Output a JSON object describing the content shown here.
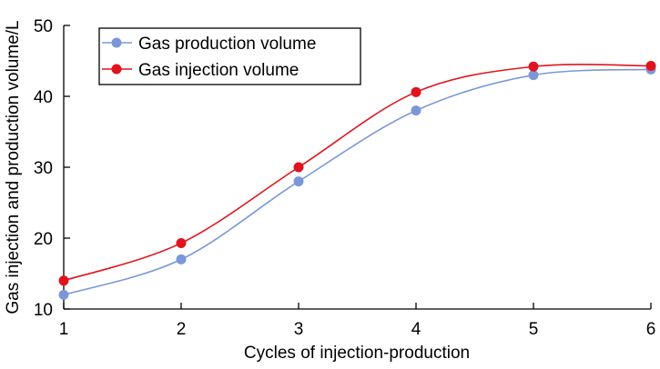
{
  "chart_data": {
    "type": "line",
    "title": "",
    "xlabel": "Cycles of injection-production",
    "ylabel": "Gas injection and production volume/L",
    "x": [
      1,
      2,
      3,
      4,
      5,
      6
    ],
    "xlim": [
      1,
      6
    ],
    "ylim": [
      10,
      50
    ],
    "xticks": [
      "1",
      "2",
      "3",
      "4",
      "5",
      "6"
    ],
    "yticks": [
      "10",
      "20",
      "30",
      "40",
      "50"
    ],
    "grid": false,
    "legend_position": "top-left",
    "series": [
      {
        "name": "Gas production volume",
        "color": "#7b97d8",
        "values": [
          12,
          17,
          28,
          38,
          43,
          43.8
        ]
      },
      {
        "name": "Gas injection volume",
        "color": "#e0141e",
        "values": [
          14,
          19.3,
          30,
          40.6,
          44.2,
          44.3
        ]
      }
    ]
  }
}
